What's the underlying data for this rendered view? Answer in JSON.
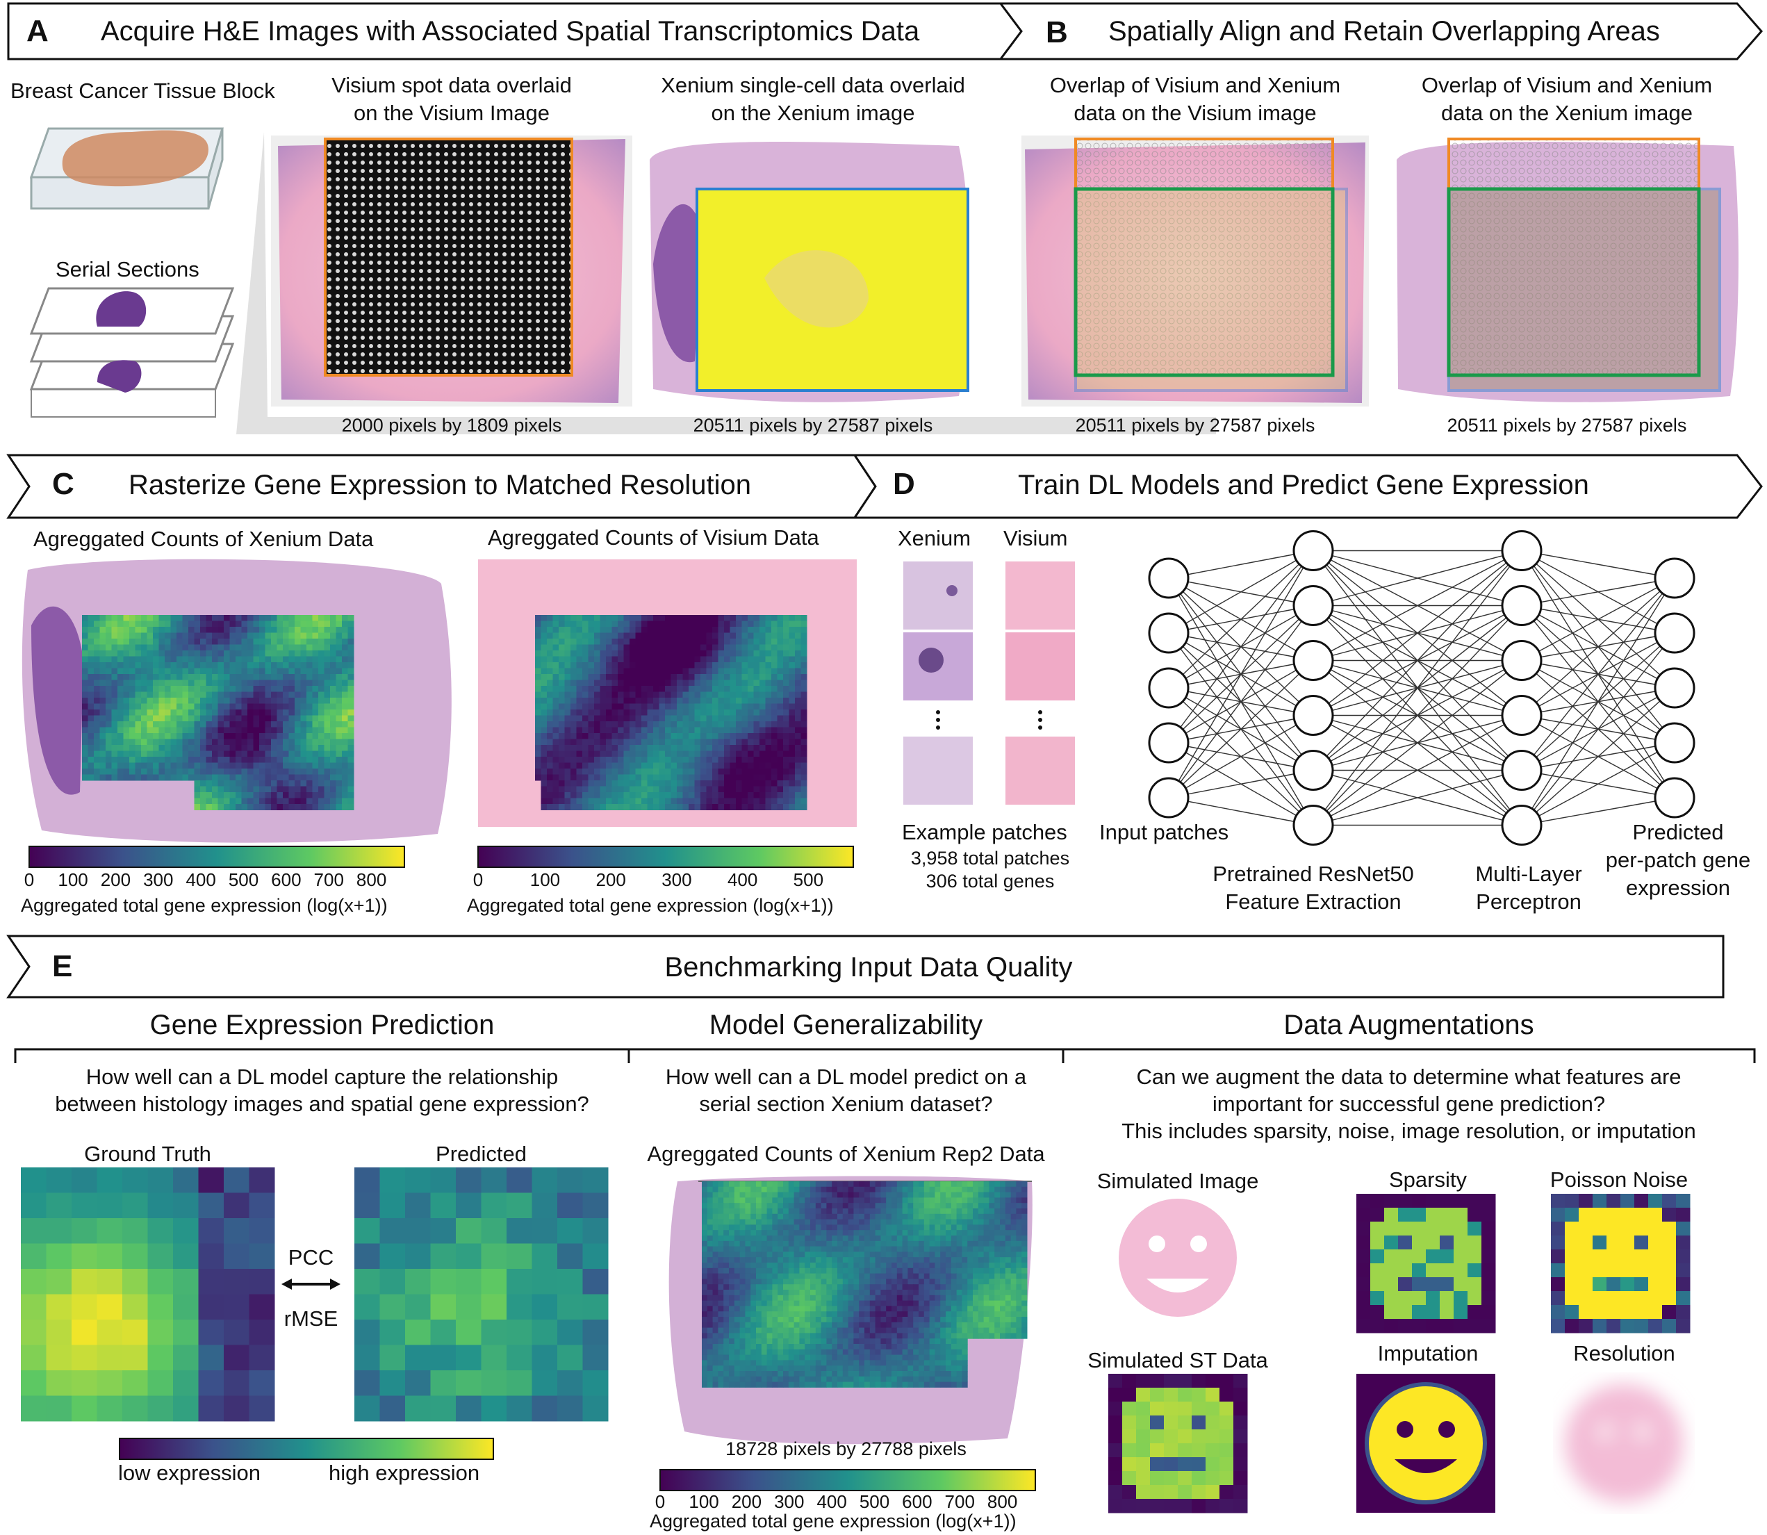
{
  "panels": {
    "A": {
      "letter": "A",
      "title": "Acquire H&E Images with Associated Spatial Transcriptomics Data",
      "tissue_block": "Breast Cancer Tissue Block",
      "serial_sections": "Serial Sections",
      "visium_caption_1": "Visium spot data overlaid",
      "visium_caption_2": "on the Visium Image",
      "xenium_caption_1": "Xenium single-cell data overlaid",
      "xenium_caption_2": "on the Xenium image",
      "visium_size": "2000 pixels by 1809 pixels",
      "xenium_size": "20511 pixels by 27587 pixels"
    },
    "B": {
      "letter": "B",
      "title": "Spatially Align and Retain Overlapping Areas",
      "left_caption_1": "Overlap of Visium and Xenium",
      "left_caption_2": "data on the Visium image",
      "right_caption_1": "Overlap of Visium and Xenium",
      "right_caption_2": "data on the Xenium image",
      "left_size": "20511 pixels by 27587 pixels",
      "right_size": "20511 pixels by 27587 pixels"
    },
    "C": {
      "letter": "C",
      "title": "Rasterize Gene Expression to Matched Resolution",
      "xenium_title": "Agreggated Counts of Xenium Data",
      "visium_title": "Agreggated Counts of Visium Data",
      "xenium_ticks": [
        "0",
        "100",
        "200",
        "300",
        "400",
        "500",
        "600",
        "700",
        "800"
      ],
      "visium_ticks": [
        "0",
        "100",
        "200",
        "300",
        "400",
        "500"
      ],
      "colorbar_label": "Aggregated total gene expression (log(x+1))"
    },
    "D": {
      "letter": "D",
      "title": "Train DL Models and Predict Gene Expression",
      "xenium_label": "Xenium",
      "visium_label": "Visium",
      "example_patches": "Example patches",
      "total_patches": "3,958 total patches",
      "total_genes": "306 total genes",
      "input_patches": "Input patches",
      "resnet_1": "Pretrained ResNet50",
      "resnet_2": "Feature Extraction",
      "mlp_1": "Multi-Layer",
      "mlp_2": "Perceptron",
      "pred_1": "Predicted",
      "pred_2": "per-patch gene",
      "pred_3": "expression"
    },
    "E": {
      "letter": "E",
      "title": "Benchmarking Input Data Quality",
      "gep_title": "Gene Expression Prediction",
      "gep_q1": "How well can a DL model capture the relationship",
      "gep_q2": "between histology images and spatial gene expression?",
      "ground_truth": "Ground Truth",
      "predicted": "Predicted",
      "pcc": "PCC",
      "rmse": "rMSE",
      "low": "low expression",
      "high": "high expression",
      "gen_title": "Model Generalizability",
      "gen_q1": "How well can a DL model predict on a",
      "gen_q2": "serial section Xenium dataset?",
      "rep2_title": "Agreggated Counts of Xenium Rep2 Data",
      "rep2_size": "18728 pixels by 27788 pixels",
      "rep2_ticks": [
        "0",
        "100",
        "200",
        "300",
        "400",
        "500",
        "600",
        "700",
        "800"
      ],
      "rep2_colorbar_label": "Aggregated total gene expression (log(x+1))",
      "aug_title": "Data Augmentations",
      "aug_q1": "Can we augment the data to determine what features are",
      "aug_q2": "important for successful gene prediction?",
      "aug_q3": "This includes sparsity, noise, image resolution, or imputation",
      "sim_image": "Simulated Image",
      "sparsity": "Sparsity",
      "poisson": "Poisson Noise",
      "sim_st": "Simulated ST Data",
      "imputation": "Imputation",
      "resolution": "Resolution"
    }
  },
  "network": {
    "layer_sizes": [
      5,
      6,
      6,
      5
    ]
  },
  "colors": {
    "viridis": [
      "#440154",
      "#3b528b",
      "#21918c",
      "#5ec962",
      "#fde725"
    ],
    "visium_frame": "#f08a24",
    "xenium_frame": "#2a7fd0",
    "overlap_frame": "#1a9a4a",
    "he_pink": "#f0b7cf",
    "he_purple": "#8a5aa8"
  }
}
